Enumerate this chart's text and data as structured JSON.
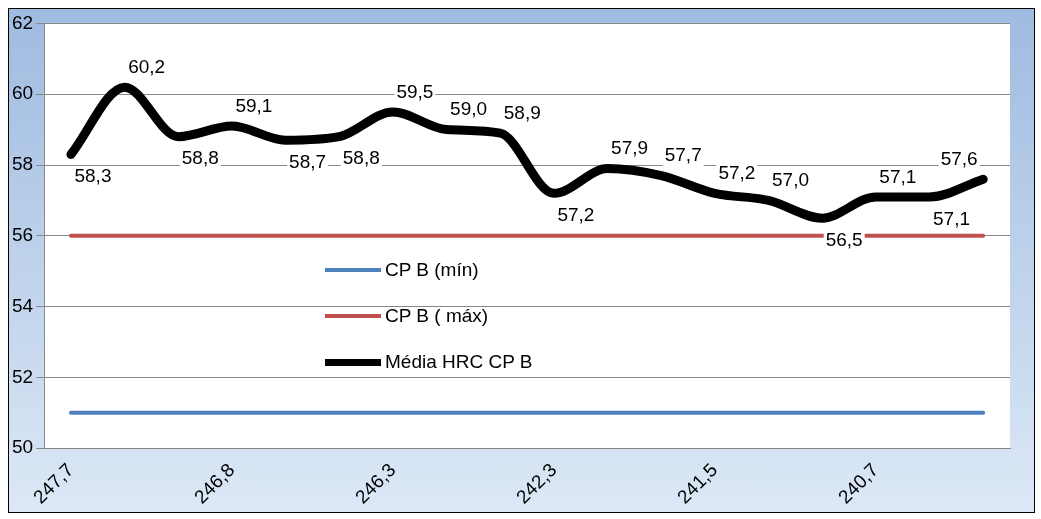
{
  "chart_data": {
    "type": "line",
    "categories": [
      "247,7",
      null,
      null,
      "246,8",
      null,
      null,
      "246,3",
      null,
      null,
      "242,3",
      null,
      null,
      "241,5",
      null,
      null,
      "240,7",
      null,
      null
    ],
    "series": [
      {
        "name": "CP  B (mín)",
        "color": "#4f81bd",
        "values": [
          51,
          51,
          51,
          51,
          51,
          51,
          51,
          51,
          51,
          51,
          51,
          51,
          51,
          51,
          51,
          51,
          51,
          51
        ]
      },
      {
        "name": "CP B ( máx)",
        "color": "#c0504d",
        "values": [
          56,
          56,
          56,
          56,
          56,
          56,
          56,
          56,
          56,
          56,
          56,
          56,
          56,
          56,
          56,
          56,
          56,
          56
        ]
      },
      {
        "name": "Média HRC CP B",
        "color": "#000000",
        "values": [
          58.3,
          60.2,
          58.8,
          59.1,
          58.7,
          58.8,
          59.5,
          59.0,
          58.9,
          57.2,
          57.9,
          57.7,
          57.2,
          57.0,
          56.5,
          57.1,
          57.1,
          57.6
        ],
        "value_labels": [
          "58,3",
          "60,2",
          "58,8",
          "59,1",
          "58,7",
          "58,8",
          "59,5",
          "59,0",
          "58,9",
          "57,2",
          "57,9",
          "57,7",
          "57,2",
          "57,0",
          "56,5",
          "57,1",
          "57,1",
          "57,6"
        ]
      }
    ],
    "ylim": [
      50,
      62
    ],
    "yticks": [
      50,
      52,
      54,
      56,
      58,
      60,
      62
    ],
    "grid": "y",
    "legend": "bottom",
    "marker": "none",
    "line_style": "solid"
  }
}
